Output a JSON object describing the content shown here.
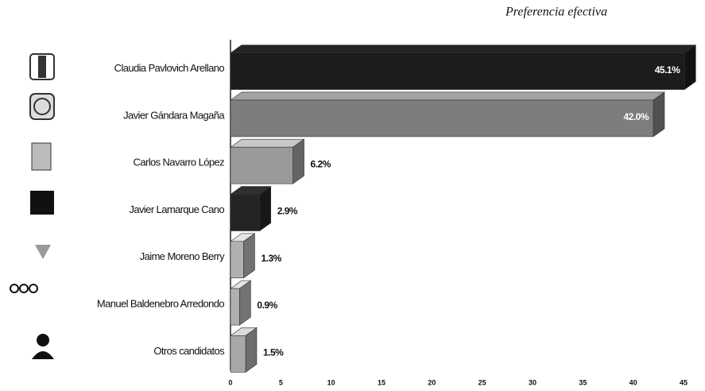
{
  "chart_data": {
    "type": "bar",
    "orientation": "horizontal",
    "title": "Preferencia efectiva",
    "categories": [
      "Claudia Pavlovich Arellano",
      "Javier Gándara Magaña",
      "Carlos Navarro López",
      "Javier Lamarque Cano",
      "Jaime Moreno Berry",
      "Manuel Baldenebro Arredondo",
      "Otros candidatos"
    ],
    "values": [
      45.1,
      42.0,
      6.2,
      2.9,
      1.3,
      0.9,
      1.5
    ],
    "value_labels": [
      "45.1%",
      "42.0%",
      "6.2%",
      "2.9%",
      "1.3%",
      "0.9%",
      "1.5%"
    ],
    "colors": [
      "#1c1c1c",
      "#7d7d7d",
      "#9a9a9a",
      "#242424",
      "#b0b0b0",
      "#b0b0b0",
      "#a8a8a8"
    ],
    "xlim": [
      0,
      45
    ],
    "xticks": [
      0,
      5,
      10,
      15,
      20,
      25,
      30,
      35,
      40,
      45
    ]
  }
}
